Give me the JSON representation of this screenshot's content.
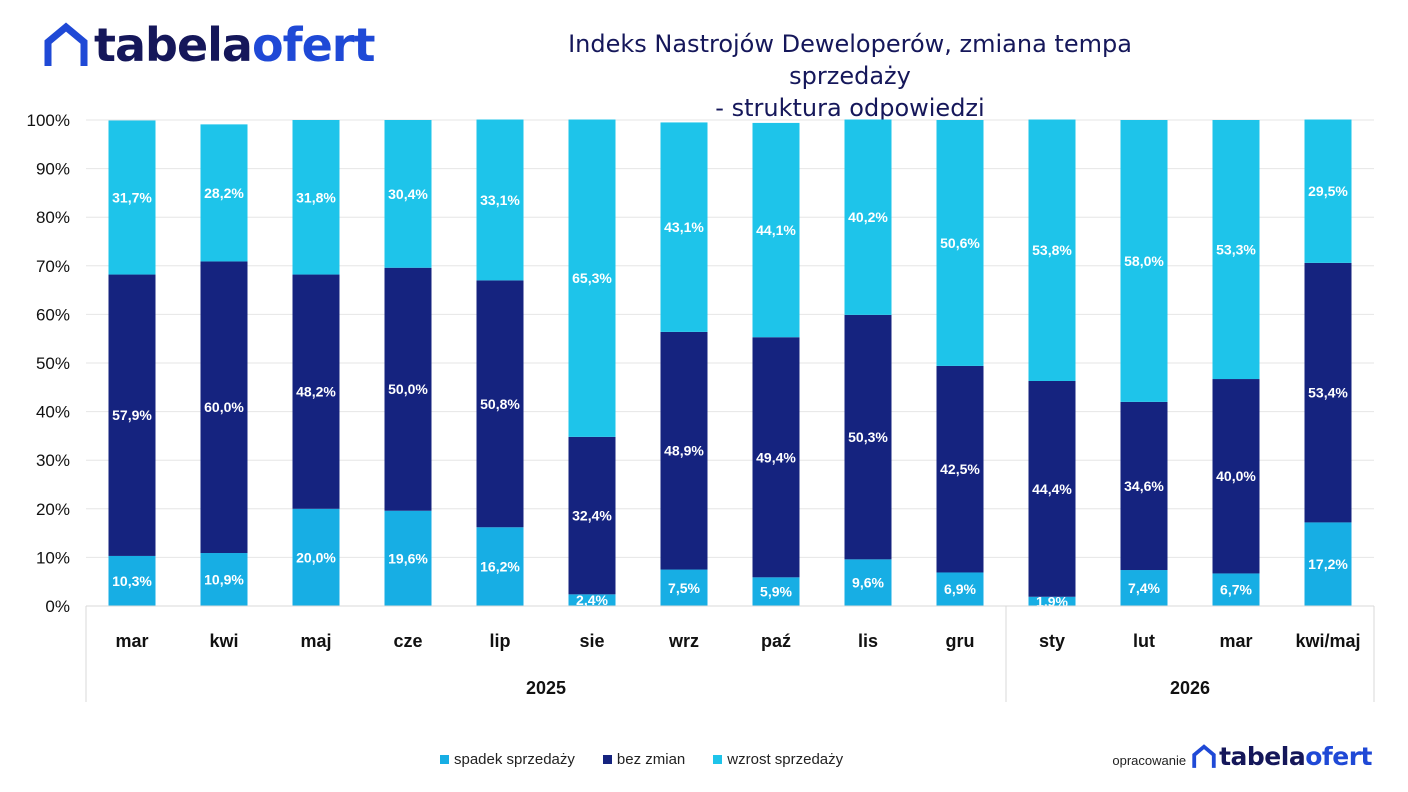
{
  "brand": {
    "part1": "tabela",
    "part2": "ofert",
    "color_dark": "#15175a",
    "color_blue": "#1f49d6",
    "icon": "house-outline-icon"
  },
  "title_line1": "Indeks Nastrojów Deweloperów, zmiana tempa sprzedaży",
  "title_line2": "- struktura odpowiedzi",
  "footer": {
    "label": "opracowanie"
  },
  "chart_data": {
    "type": "bar",
    "stacked": true,
    "categories": [
      "mar",
      "kwi",
      "maj",
      "cze",
      "lip",
      "sie",
      "wrz",
      "paź",
      "lis",
      "gru",
      "sty",
      "lut",
      "mar",
      "kwi/maj"
    ],
    "groups": [
      {
        "label": "2025",
        "count": 10
      },
      {
        "label": "2026",
        "count": 4
      }
    ],
    "series": [
      {
        "name": "spadek sprzedaży",
        "color": "#17aee4",
        "values": [
          10.3,
          10.9,
          20.0,
          19.6,
          16.2,
          2.4,
          7.5,
          5.9,
          9.6,
          6.9,
          1.9,
          7.4,
          6.7,
          17.2
        ],
        "labels": [
          "10,3%",
          "10,9%",
          "20,0%",
          "19,6%",
          "16,2%",
          "2,4%",
          "7,5%",
          "5,9%",
          "9,6%",
          "6,9%",
          "1,9%",
          "7,4%",
          "6,7%",
          "17,2%"
        ]
      },
      {
        "name": "bez zmian",
        "color": "#15237f",
        "values": [
          57.9,
          60.0,
          48.2,
          50.0,
          50.8,
          32.4,
          48.9,
          49.4,
          50.3,
          42.5,
          44.4,
          34.6,
          40.0,
          53.4
        ],
        "labels": [
          "57,9%",
          "60,0%",
          "48,2%",
          "50,0%",
          "50,8%",
          "32,4%",
          "48,9%",
          "49,4%",
          "50,3%",
          "42,5%",
          "44,4%",
          "34,6%",
          "40,0%",
          "53,4%"
        ]
      },
      {
        "name": "wzrost sprzedaży",
        "color": "#1ec4ea",
        "values": [
          31.7,
          28.2,
          31.8,
          30.4,
          33.1,
          65.3,
          43.1,
          44.1,
          40.2,
          50.6,
          53.8,
          58.0,
          53.3,
          29.5
        ],
        "labels": [
          "31,7%",
          "28,2%",
          "31,8%",
          "30,4%",
          "33,1%",
          "65,3%",
          "43,1%",
          "44,1%",
          "40,2%",
          "50,6%",
          "53,8%",
          "58,0%",
          "53,3%",
          "29,5%"
        ]
      }
    ],
    "y_ticks": [
      "0%",
      "10%",
      "20%",
      "30%",
      "40%",
      "50%",
      "60%",
      "70%",
      "80%",
      "90%",
      "100%"
    ],
    "ylim": [
      0,
      100
    ],
    "grid": true,
    "legend_position": "bottom"
  }
}
